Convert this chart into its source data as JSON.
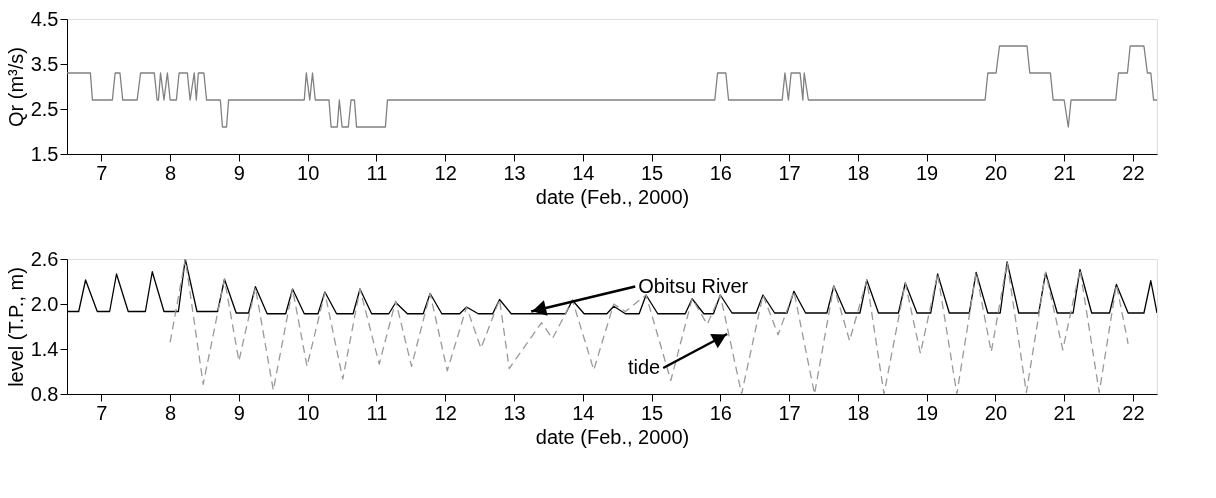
{
  "chart_data": [
    {
      "type": "line",
      "xlabel": "date (Feb., 2000)",
      "ylabel": "Qr (m³/s)",
      "xlim": [
        6.5,
        22.35
      ],
      "xticks": [
        7,
        8,
        9,
        10,
        11,
        12,
        13,
        14,
        15,
        16,
        17,
        18,
        19,
        20,
        21,
        22
      ],
      "ylim": [
        1.5,
        4.5
      ],
      "yticks": [
        1.5,
        2.5,
        3.5,
        4.5
      ],
      "grid": false,
      "legend": false,
      "marker": "none",
      "series": [
        {
          "color": "#808080",
          "line_style": "solid",
          "x": [
            6.5,
            6.84,
            6.87,
            7.16,
            7.2,
            7.27,
            7.31,
            7.52,
            7.57,
            7.77,
            7.81,
            7.83,
            7.86,
            7.91,
            7.96,
            8.0,
            8.09,
            8.13,
            8.25,
            8.29,
            8.35,
            8.38,
            8.41,
            8.49,
            8.53,
            8.73,
            8.76,
            8.82,
            8.85,
            9.95,
            9.98,
            10.03,
            10.07,
            10.11,
            10.31,
            10.34,
            10.43,
            10.46,
            10.5,
            10.59,
            10.63,
            10.68,
            10.71,
            11.13,
            11.16,
            15.92,
            15.96,
            16.08,
            16.12,
            16.9,
            16.94,
            16.99,
            17.03,
            17.16,
            17.2,
            17.22,
            17.28,
            19.85,
            19.89,
            20.01,
            20.06,
            20.46,
            20.5,
            20.8,
            20.84,
            21.0,
            21.06,
            21.1,
            21.75,
            21.79,
            21.92,
            21.96,
            22.16,
            22.21,
            22.26,
            22.3,
            22.35
          ],
          "values": [
            3.3,
            3.3,
            2.7,
            2.7,
            3.3,
            3.3,
            2.7,
            2.7,
            3.3,
            3.3,
            2.7,
            2.7,
            3.3,
            2.7,
            3.3,
            2.7,
            2.7,
            3.3,
            3.3,
            2.7,
            3.3,
            2.7,
            3.3,
            3.3,
            2.7,
            2.7,
            2.1,
            2.1,
            2.7,
            2.7,
            3.3,
            2.7,
            3.3,
            2.7,
            2.7,
            2.1,
            2.1,
            2.7,
            2.1,
            2.1,
            2.7,
            2.7,
            2.1,
            2.1,
            2.7,
            2.7,
            3.3,
            3.3,
            2.7,
            2.7,
            3.3,
            2.7,
            3.3,
            3.3,
            2.7,
            3.3,
            2.7,
            2.7,
            3.3,
            3.3,
            3.9,
            3.9,
            3.3,
            3.3,
            2.7,
            2.7,
            2.1,
            2.7,
            2.7,
            3.3,
            3.3,
            3.9,
            3.9,
            3.3,
            3.3,
            2.7,
            2.7
          ]
        }
      ]
    },
    {
      "type": "line",
      "xlabel": "date (Feb., 2000)",
      "ylabel": "level (T.P., m)",
      "xlim": [
        6.5,
        22.35
      ],
      "xticks": [
        7,
        8,
        9,
        10,
        11,
        12,
        13,
        14,
        15,
        16,
        17,
        18,
        19,
        20,
        21,
        22
      ],
      "ylim": [
        0.8,
        2.6
      ],
      "yticks": [
        0.8,
        1.4,
        {
          "value": 2,
          "label": "2.0"
        },
        2.6
      ],
      "grid": false,
      "legend": false,
      "marker": "none",
      "annotations": [
        {
          "text": "Obitsu River",
          "x": 13.25,
          "y": 1.9
        },
        {
          "text": "tide",
          "x": 16.1,
          "y": 1.6
        }
      ],
      "series": [
        {
          "color": "#000000",
          "line_style": "solid",
          "x": [
            6.5,
            6.67,
            6.77,
            6.94,
            7.12,
            7.22,
            7.39,
            7.64,
            7.74,
            7.91,
            8.12,
            8.22,
            8.39,
            8.69,
            8.79,
            8.96,
            9.14,
            9.24,
            9.41,
            9.68,
            9.78,
            9.95,
            10.15,
            10.25,
            10.42,
            10.66,
            10.76,
            10.93,
            11.18,
            11.28,
            11.45,
            11.68,
            11.78,
            11.95,
            12.21,
            12.31,
            12.48,
            12.69,
            12.79,
            12.96,
            13.75,
            13.85,
            14.02,
            14.35,
            14.45,
            14.62,
            14.82,
            14.92,
            15.09,
            15.49,
            15.59,
            15.76,
            15.9,
            16.0,
            16.17,
            16.52,
            16.62,
            16.79,
            16.97,
            17.07,
            17.24,
            17.55,
            17.65,
            17.82,
            18.03,
            18.13,
            18.3,
            18.59,
            18.69,
            18.86,
            19.06,
            19.16,
            19.33,
            19.62,
            19.72,
            19.89,
            20.07,
            20.17,
            20.34,
            20.63,
            20.73,
            20.9,
            21.13,
            21.23,
            21.4,
            21.66,
            21.76,
            21.93,
            22.16,
            22.26,
            22.35
          ],
          "values": [
            1.9,
            1.9,
            2.32,
            1.9,
            1.9,
            2.4,
            1.9,
            1.9,
            2.43,
            1.9,
            1.9,
            2.6,
            1.9,
            1.9,
            2.33,
            1.88,
            1.88,
            2.23,
            1.87,
            1.87,
            2.2,
            1.87,
            1.87,
            2.16,
            1.87,
            1.87,
            2.2,
            1.87,
            1.87,
            2.02,
            1.87,
            1.87,
            2.14,
            1.87,
            1.87,
            1.96,
            1.87,
            1.87,
            2.06,
            1.87,
            1.87,
            2.05,
            1.87,
            1.87,
            1.97,
            1.87,
            1.87,
            2.12,
            1.87,
            1.87,
            2.07,
            1.87,
            1.87,
            2.12,
            1.88,
            1.88,
            2.12,
            1.88,
            1.88,
            2.17,
            1.88,
            1.88,
            2.24,
            1.88,
            1.88,
            2.32,
            1.88,
            1.88,
            2.28,
            1.88,
            1.88,
            2.4,
            1.88,
            1.88,
            2.42,
            1.88,
            1.88,
            2.56,
            1.88,
            1.88,
            2.42,
            1.88,
            1.88,
            2.46,
            1.88,
            1.88,
            2.26,
            1.88,
            1.88,
            2.31,
            1.88
          ]
        },
        {
          "color": "#999999",
          "line_style": "dashed",
          "x": [
            8.0,
            8.22,
            8.48,
            8.79,
            9.0,
            9.24,
            9.5,
            9.78,
            9.99,
            10.25,
            10.51,
            10.76,
            11.04,
            11.28,
            11.51,
            11.78,
            12.03,
            12.31,
            12.52,
            12.79,
            12.93,
            13.4,
            13.56,
            13.85,
            14.16,
            14.45,
            14.62,
            14.92,
            15.28,
            15.59,
            15.81,
            16.0,
            16.31,
            16.62,
            16.84,
            17.07,
            17.37,
            17.65,
            17.88,
            18.13,
            18.38,
            18.69,
            18.91,
            19.16,
            19.44,
            19.72,
            19.94,
            20.17,
            20.45,
            20.73,
            20.98,
            21.23,
            21.51,
            21.76,
            21.93
          ],
          "values": [
            1.49,
            2.6,
            0.93,
            2.33,
            1.24,
            2.22,
            0.85,
            2.2,
            1.17,
            2.15,
            1.0,
            2.2,
            1.2,
            2.04,
            1.17,
            2.14,
            1.11,
            1.96,
            1.41,
            2.06,
            1.14,
            1.75,
            1.54,
            2.05,
            1.12,
            2.0,
            1.9,
            2.12,
            0.98,
            2.07,
            1.73,
            2.12,
            0.8,
            2.12,
            1.59,
            2.17,
            0.8,
            2.24,
            1.51,
            2.32,
            0.8,
            2.28,
            1.34,
            2.4,
            0.8,
            2.42,
            1.36,
            2.56,
            0.82,
            2.42,
            1.39,
            2.46,
            0.82,
            2.26,
            1.47
          ]
        }
      ]
    }
  ]
}
